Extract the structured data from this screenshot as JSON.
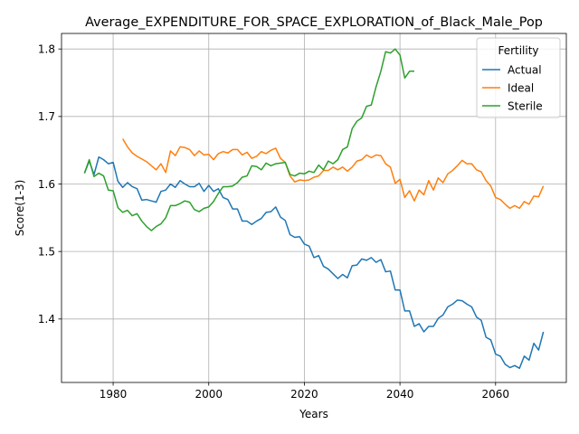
{
  "chart_data": {
    "type": "line",
    "title": "Average_EXPENDITURE_FOR_SPACE_EXPLORATION_of_Black_Male_Pop",
    "xlabel": "Years",
    "ylabel": "Score(1-3)",
    "xlim": [
      1969.2,
      2074.8
    ],
    "ylim": [
      1.306,
      1.823
    ],
    "xticks": [
      1980,
      2000,
      2020,
      2040,
      2060
    ],
    "yticks": [
      1.4,
      1.5,
      1.6,
      1.7,
      1.8
    ],
    "grid": true,
    "legend": {
      "title": "Fertility",
      "placement": "top-right"
    },
    "series": [
      {
        "name": "Actual",
        "color": "#1f77b4",
        "x": [
          1974,
          1975,
          1976,
          1977,
          1978,
          1979,
          1980,
          1981,
          1982,
          1983,
          1984,
          1985,
          1986,
          1987,
          1988,
          1989,
          1990,
          1991,
          1992,
          1993,
          1994,
          1995,
          1996,
          1997,
          1998,
          1999,
          2000,
          2001,
          2002,
          2003,
          2004,
          2005,
          2006,
          2007,
          2008,
          2009,
          2010,
          2011,
          2012,
          2013,
          2014,
          2015,
          2016,
          2017,
          2018,
          2019,
          2020,
          2021,
          2022,
          2023,
          2024,
          2025,
          2026,
          2027,
          2028,
          2029,
          2030,
          2031,
          2032,
          2033,
          2034,
          2035,
          2036,
          2037,
          2038,
          2039,
          2040,
          2041,
          2042,
          2043,
          2044,
          2045,
          2046,
          2047,
          2048,
          2049,
          2050,
          2051,
          2052,
          2053,
          2054,
          2055,
          2056,
          2057,
          2058,
          2059,
          2060,
          2061,
          2062,
          2063,
          2064,
          2065,
          2066,
          2067,
          2068,
          2069,
          2070
        ],
        "values": [
          1.616,
          1.634,
          1.614,
          1.64,
          1.636,
          1.63,
          1.632,
          1.604,
          1.595,
          1.602,
          1.596,
          1.593,
          1.576,
          1.577,
          1.575,
          1.573,
          1.589,
          1.591,
          1.6,
          1.595,
          1.605,
          1.6,
          1.596,
          1.596,
          1.601,
          1.589,
          1.598,
          1.589,
          1.593,
          1.58,
          1.577,
          1.563,
          1.563,
          1.545,
          1.545,
          1.54,
          1.545,
          1.549,
          1.558,
          1.559,
          1.566,
          1.551,
          1.546,
          1.525,
          1.521,
          1.522,
          1.511,
          1.508,
          1.491,
          1.494,
          1.478,
          1.474,
          1.467,
          1.46,
          1.466,
          1.461,
          1.479,
          1.48,
          1.489,
          1.487,
          1.491,
          1.484,
          1.488,
          1.47,
          1.471,
          1.443,
          1.443,
          1.412,
          1.412,
          1.389,
          1.393,
          1.381,
          1.389,
          1.389,
          1.401,
          1.406,
          1.418,
          1.422,
          1.428,
          1.427,
          1.422,
          1.418,
          1.403,
          1.398,
          1.373,
          1.369,
          1.348,
          1.345,
          1.333,
          1.328,
          1.331,
          1.327,
          1.345,
          1.339,
          1.364,
          1.354,
          1.381
        ]
      },
      {
        "name": "Ideal",
        "color": "#ff7f0e",
        "x": [
          1982,
          1983,
          1984,
          1985,
          1986,
          1987,
          1988,
          1989,
          1990,
          1991,
          1992,
          1993,
          1994,
          1995,
          1996,
          1997,
          1998,
          1999,
          2000,
          2001,
          2002,
          2003,
          2004,
          2005,
          2006,
          2007,
          2008,
          2009,
          2010,
          2011,
          2012,
          2013,
          2014,
          2015,
          2016,
          2017,
          2018,
          2019,
          2020,
          2021,
          2022,
          2023,
          2024,
          2025,
          2026,
          2027,
          2028,
          2029,
          2030,
          2031,
          2032,
          2033,
          2034,
          2035,
          2036,
          2037,
          2038,
          2039,
          2040,
          2041,
          2042,
          2043,
          2044,
          2045,
          2046,
          2047,
          2048,
          2049,
          2050,
          2051,
          2052,
          2053,
          2054,
          2055,
          2056,
          2057,
          2058,
          2059,
          2060,
          2061,
          2062,
          2063,
          2064,
          2065,
          2066,
          2067,
          2068,
          2069,
          2070
        ],
        "values": [
          1.667,
          1.655,
          1.646,
          1.641,
          1.637,
          1.633,
          1.627,
          1.621,
          1.63,
          1.617,
          1.649,
          1.642,
          1.655,
          1.654,
          1.651,
          1.642,
          1.649,
          1.643,
          1.644,
          1.636,
          1.645,
          1.648,
          1.646,
          1.651,
          1.651,
          1.643,
          1.647,
          1.638,
          1.641,
          1.648,
          1.645,
          1.65,
          1.653,
          1.638,
          1.632,
          1.612,
          1.603,
          1.606,
          1.605,
          1.606,
          1.61,
          1.612,
          1.62,
          1.62,
          1.625,
          1.621,
          1.625,
          1.619,
          1.625,
          1.634,
          1.636,
          1.643,
          1.639,
          1.643,
          1.642,
          1.63,
          1.625,
          1.601,
          1.607,
          1.58,
          1.59,
          1.575,
          1.591,
          1.584,
          1.605,
          1.591,
          1.609,
          1.602,
          1.615,
          1.62,
          1.627,
          1.635,
          1.63,
          1.63,
          1.621,
          1.618,
          1.605,
          1.597,
          1.58,
          1.577,
          1.57,
          1.564,
          1.568,
          1.564,
          1.574,
          1.57,
          1.582,
          1.581,
          1.597
        ]
      },
      {
        "name": "Sterile",
        "color": "#2ca02c",
        "x": [
          1974,
          1975,
          1976,
          1977,
          1978,
          1979,
          1980,
          1981,
          1982,
          1983,
          1984,
          1985,
          1986,
          1987,
          1988,
          1989,
          1990,
          1991,
          1992,
          1993,
          1994,
          1995,
          1996,
          1997,
          1998,
          1999,
          2000,
          2001,
          2002,
          2003,
          2004,
          2005,
          2006,
          2007,
          2008,
          2009,
          2010,
          2011,
          2012,
          2013,
          2014,
          2015,
          2016,
          2017,
          2018,
          2019,
          2020,
          2021,
          2022,
          2023,
          2024,
          2025,
          2026,
          2027,
          2028,
          2029,
          2030,
          2031,
          2032,
          2033,
          2034,
          2035,
          2036,
          2037,
          2038,
          2039,
          2040,
          2041,
          2042,
          2043
        ],
        "values": [
          1.616,
          1.636,
          1.611,
          1.616,
          1.612,
          1.591,
          1.59,
          1.565,
          1.558,
          1.561,
          1.553,
          1.556,
          1.545,
          1.537,
          1.531,
          1.537,
          1.541,
          1.55,
          1.568,
          1.568,
          1.571,
          1.575,
          1.573,
          1.562,
          1.559,
          1.564,
          1.566,
          1.574,
          1.586,
          1.596,
          1.596,
          1.597,
          1.602,
          1.61,
          1.612,
          1.627,
          1.626,
          1.621,
          1.631,
          1.627,
          1.63,
          1.631,
          1.632,
          1.614,
          1.612,
          1.616,
          1.615,
          1.619,
          1.617,
          1.628,
          1.621,
          1.634,
          1.63,
          1.636,
          1.651,
          1.655,
          1.682,
          1.693,
          1.698,
          1.715,
          1.717,
          1.744,
          1.767,
          1.796,
          1.794,
          1.8,
          1.791,
          1.757,
          1.767,
          1.767
        ]
      }
    ]
  }
}
